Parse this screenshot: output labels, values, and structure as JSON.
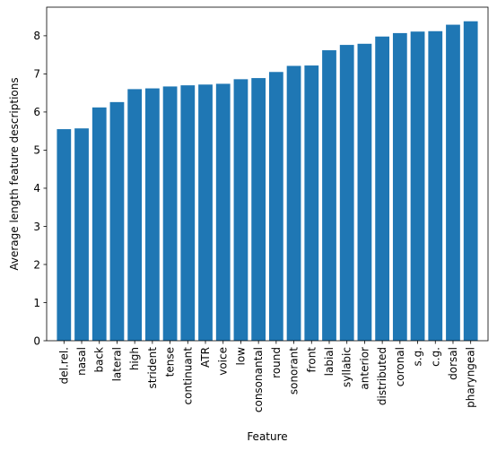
{
  "chart_data": {
    "type": "bar",
    "title": "",
    "xlabel": "Feature",
    "ylabel": "Average length feature descriptions",
    "ylim": [
      0,
      8.75
    ],
    "yticks": [
      0,
      1,
      2,
      3,
      4,
      5,
      6,
      7,
      8
    ],
    "grid": false,
    "bar_color": "#1f77b4",
    "categories": [
      "del.rel.",
      "nasal",
      "back",
      "lateral",
      "high",
      "strident",
      "tense",
      "continuant",
      "ATR",
      "voice",
      "low",
      "consonantal",
      "round",
      "sonorant",
      "front",
      "labial",
      "syllabic",
      "anterior",
      "distributed",
      "coronal",
      "s.g.",
      "c.g.",
      "dorsal",
      "pharyngeal"
    ],
    "values": [
      5.55,
      5.57,
      6.12,
      6.26,
      6.6,
      6.62,
      6.67,
      6.7,
      6.72,
      6.74,
      6.86,
      6.89,
      7.05,
      7.21,
      7.22,
      7.62,
      7.76,
      7.79,
      7.98,
      8.07,
      8.11,
      8.12,
      8.29,
      8.38
    ]
  }
}
